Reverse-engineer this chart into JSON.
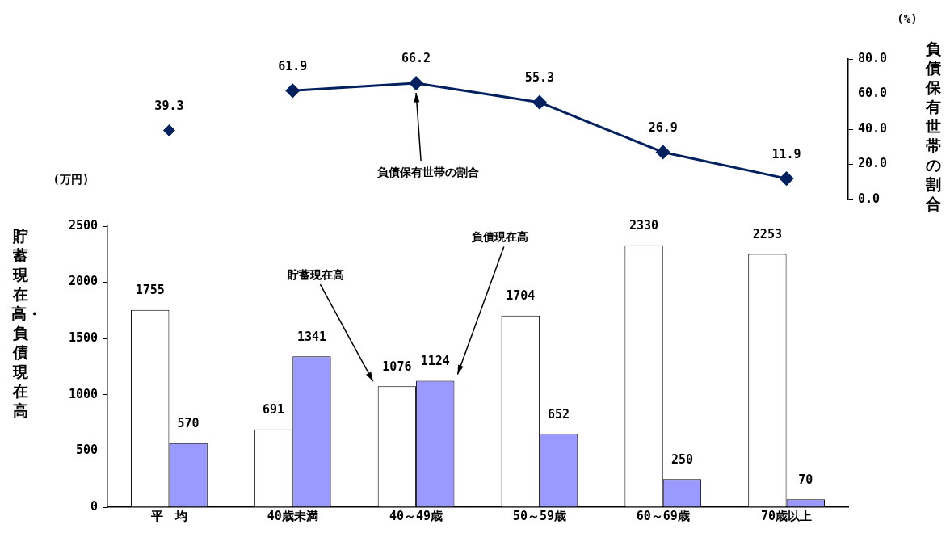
{
  "chart_data": [
    {
      "type": "line",
      "y2label": "負債保有世帯の割合",
      "categories": [
        "平　均",
        "40歳未満",
        "40～49歳",
        "50～59歳",
        "60～69歳",
        "70歳以上"
      ],
      "series": [
        {
          "type": "scatter",
          "axis": "y2",
          "color": "#002060",
          "x": [
            "平　均"
          ],
          "values": [
            39.3
          ]
        },
        {
          "name": "負債保有世帯の割合",
          "axis": "y2",
          "color": "#002060",
          "values": [
            null,
            61.9,
            66.2,
            55.3,
            26.9,
            11.9
          ]
        }
      ],
      "y2lim": [
        0,
        80
      ],
      "y2ticks": [
        {
          "value": 0,
          "label": "0.0"
        },
        {
          "value": 20,
          "label": "20.0"
        },
        {
          "value": 40,
          "label": "40.0"
        },
        {
          "value": 60,
          "label": "60.0"
        },
        {
          "value": 80,
          "label": "80.0"
        }
      ],
      "annotations": [
        "(%)"
      ],
      "tick_labels": "y",
      "data_labels": true,
      "marker": "diamond",
      "legend": false,
      "grid": false
    },
    {
      "type": "bar",
      "ylabel": "貯蓄現在高・負債現在高",
      "categories": [
        "平　均",
        "40歳未満",
        "40～49歳",
        "50～59歳",
        "60～69歳",
        "70歳以上"
      ],
      "series": [
        {
          "color": "#ffffff",
          "values": [
            1755,
            691,
            1076,
            1704,
            2330,
            2253
          ]
        },
        {
          "color": "#9999ff",
          "values": [
            570,
            1341,
            1124,
            652,
            250,
            70
          ]
        }
      ],
      "ylim": [
        0,
        2500
      ],
      "yticks": [
        0,
        500,
        1000,
        1500,
        2000,
        2500
      ],
      "annotations": [
        "(万円)",
        "貯蓄現在高",
        "負債現在高"
      ],
      "data_labels": true,
      "legend": false,
      "grid": false
    }
  ]
}
